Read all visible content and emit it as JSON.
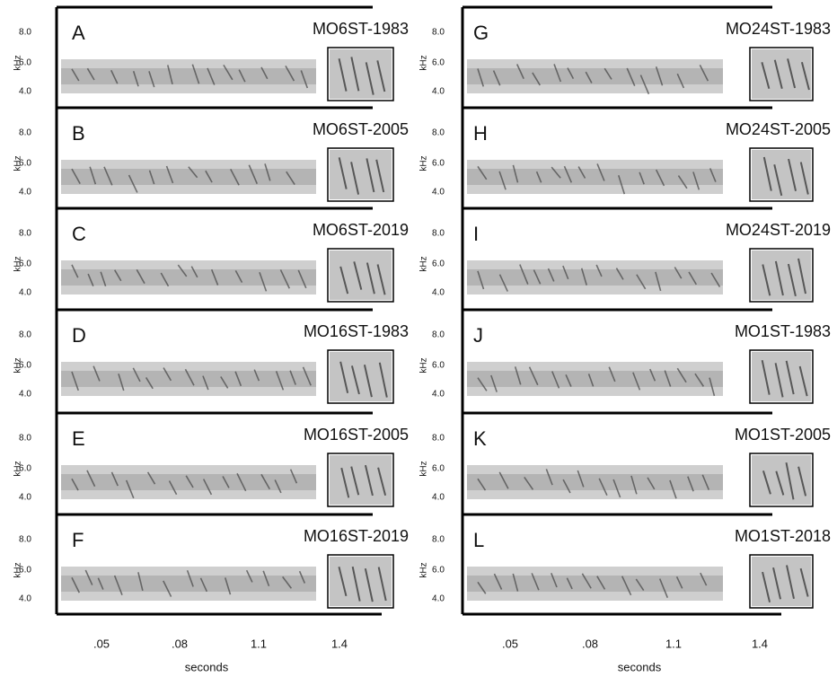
{
  "y_axis_label": "kHz",
  "y_ticks": [
    "8.0",
    "6.0",
    "4.0"
  ],
  "x_axis_label": "seconds",
  "x_ticks": [
    ".05",
    ".08",
    "1.1",
    "1.4"
  ],
  "columns": [
    {
      "panels": [
        {
          "letter": "A",
          "title": "MO6ST-1983"
        },
        {
          "letter": "B",
          "title": "MO6ST-2005"
        },
        {
          "letter": "C",
          "title": "MO6ST-2019"
        },
        {
          "letter": "D",
          "title": "MO16ST-1983"
        },
        {
          "letter": "E",
          "title": "MO16ST-2005"
        },
        {
          "letter": "F",
          "title": "MO16ST-2019"
        }
      ]
    },
    {
      "panels": [
        {
          "letter": "G",
          "title": "MO24ST-1983"
        },
        {
          "letter": "H",
          "title": "MO24ST-2005"
        },
        {
          "letter": "I",
          "title": "MO24ST-2019"
        },
        {
          "letter": "J",
          "title": "MO1ST-1983"
        },
        {
          "letter": "K",
          "title": "MO1ST-2005"
        },
        {
          "letter": "L",
          "title": "MO1ST-2018"
        }
      ]
    }
  ]
}
